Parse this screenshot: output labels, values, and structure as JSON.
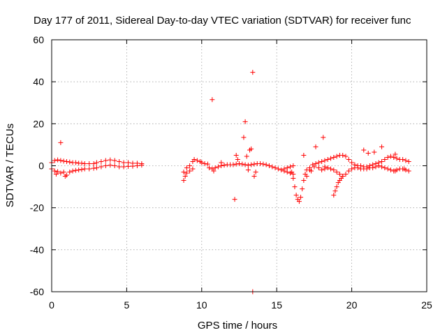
{
  "chart_data": {
    "type": "scatter",
    "title": "Day 177 of 2011, Sidereal Day-to-day VTEC variation (SDTVAR) for receiver func",
    "xlabel": "GPS time / hours",
    "ylabel": "SDTVAR / TECUs",
    "xlim": [
      0,
      25
    ],
    "ylim": [
      -60,
      60
    ],
    "x_ticks": [
      0,
      5,
      10,
      15,
      20,
      25
    ],
    "y_ticks": [
      -60,
      -40,
      -20,
      0,
      20,
      40,
      60
    ],
    "x_tick_labels": [
      "0",
      "5",
      "10",
      "15",
      "20",
      "25"
    ],
    "y_tick_labels": [
      "-60",
      "-40",
      "-20",
      "0",
      "20",
      "40",
      "60"
    ],
    "grid": true,
    "marker": "+",
    "series": [
      {
        "name": "SDTVAR",
        "color": "#ff0000",
        "points": [
          [
            0.0,
            1.5
          ],
          [
            0.0,
            -1.5
          ],
          [
            0.2,
            2.5
          ],
          [
            0.2,
            -2.5
          ],
          [
            0.4,
            2.8
          ],
          [
            0.4,
            -2.8
          ],
          [
            0.6,
            2.5
          ],
          [
            0.6,
            -3.5
          ],
          [
            0.8,
            2.2
          ],
          [
            0.8,
            -3.0
          ],
          [
            1.0,
            2.0
          ],
          [
            1.0,
            -4.5
          ],
          [
            1.2,
            1.8
          ],
          [
            1.2,
            -3.0
          ],
          [
            1.4,
            1.5
          ],
          [
            1.4,
            -2.5
          ],
          [
            1.6,
            1.5
          ],
          [
            1.6,
            -2.2
          ],
          [
            1.8,
            1.2
          ],
          [
            1.8,
            -2.0
          ],
          [
            2.0,
            1.2
          ],
          [
            2.0,
            -1.8
          ],
          [
            2.2,
            1.0
          ],
          [
            2.2,
            -1.5
          ],
          [
            2.5,
            1.0
          ],
          [
            2.5,
            -1.5
          ],
          [
            2.8,
            1.0
          ],
          [
            2.8,
            -1.2
          ],
          [
            3.0,
            1.5
          ],
          [
            3.0,
            -1.0
          ],
          [
            3.3,
            2.0
          ],
          [
            3.3,
            -0.5
          ],
          [
            3.6,
            2.5
          ],
          [
            3.6,
            0.0
          ],
          [
            3.9,
            2.8
          ],
          [
            3.9,
            0.3
          ],
          [
            4.2,
            2.5
          ],
          [
            4.2,
            0.0
          ],
          [
            4.5,
            2.0
          ],
          [
            4.5,
            -0.5
          ],
          [
            4.8,
            1.5
          ],
          [
            4.8,
            -0.5
          ],
          [
            5.1,
            1.5
          ],
          [
            5.1,
            -0.3
          ],
          [
            5.4,
            1.2
          ],
          [
            5.4,
            -0.2
          ],
          [
            5.7,
            1.2
          ],
          [
            5.7,
            0.0
          ],
          [
            6.0,
            1.0
          ],
          [
            6.0,
            0.3
          ],
          [
            0.6,
            11.0
          ],
          [
            0.9,
            -5.0
          ],
          [
            0.3,
            -4.0
          ],
          [
            8.8,
            -7.0
          ],
          [
            8.8,
            -3.0
          ],
          [
            8.9,
            -5.0
          ],
          [
            9.0,
            -3.5
          ],
          [
            9.0,
            -1.0
          ],
          [
            9.2,
            -2.5
          ],
          [
            9.2,
            0.0
          ],
          [
            9.4,
            -1.5
          ],
          [
            9.4,
            2.0
          ],
          [
            9.5,
            3.0
          ],
          [
            9.7,
            2.5
          ],
          [
            9.9,
            2.0
          ],
          [
            10.0,
            1.5
          ],
          [
            10.2,
            1.0
          ],
          [
            10.4,
            0.8
          ],
          [
            10.5,
            -1.0
          ],
          [
            10.7,
            -1.5
          ],
          [
            10.9,
            -1.0
          ],
          [
            11.1,
            -0.5
          ],
          [
            11.3,
            0.0
          ],
          [
            11.5,
            0.3
          ],
          [
            11.7,
            0.5
          ],
          [
            11.9,
            0.5
          ],
          [
            12.1,
            0.5
          ],
          [
            12.3,
            0.8
          ],
          [
            12.5,
            1.0
          ],
          [
            12.7,
            0.8
          ],
          [
            12.9,
            0.5
          ],
          [
            13.1,
            0.3
          ],
          [
            13.3,
            0.5
          ],
          [
            13.5,
            0.8
          ],
          [
            13.7,
            1.0
          ],
          [
            13.9,
            1.0
          ],
          [
            14.1,
            0.8
          ],
          [
            14.3,
            0.5
          ],
          [
            14.5,
            0.0
          ],
          [
            14.7,
            -0.5
          ],
          [
            14.9,
            -1.0
          ],
          [
            15.1,
            -1.5
          ],
          [
            15.3,
            -2.0
          ],
          [
            15.5,
            -2.5
          ],
          [
            15.7,
            -3.0
          ],
          [
            15.9,
            -3.5
          ],
          [
            16.1,
            -4.0
          ],
          [
            10.7,
            31.5
          ],
          [
            13.4,
            44.5
          ],
          [
            12.9,
            21.0
          ],
          [
            12.8,
            13.5
          ],
          [
            13.2,
            7.5
          ],
          [
            13.3,
            8.0
          ],
          [
            12.3,
            5.0
          ],
          [
            12.4,
            3.0
          ],
          [
            13.0,
            4.5
          ],
          [
            12.2,
            -16.0
          ],
          [
            13.4,
            -60.0
          ],
          [
            13.5,
            -5.0
          ],
          [
            13.6,
            -3.0
          ],
          [
            13.1,
            -2.0
          ],
          [
            10.8,
            -2.5
          ],
          [
            11.3,
            1.5
          ],
          [
            15.5,
            -1.5
          ],
          [
            15.7,
            -1.0
          ],
          [
            15.9,
            -0.5
          ],
          [
            16.0,
            -3.0
          ],
          [
            16.1,
            -6.0
          ],
          [
            16.2,
            -10.0
          ],
          [
            16.3,
            -14.0
          ],
          [
            16.4,
            -16.0
          ],
          [
            16.5,
            -17.0
          ],
          [
            16.6,
            -15.0
          ],
          [
            16.7,
            -11.0
          ],
          [
            16.8,
            -7.0
          ],
          [
            16.9,
            -4.0
          ],
          [
            17.0,
            -2.0
          ],
          [
            17.2,
            -1.0
          ],
          [
            17.4,
            0.5
          ],
          [
            17.6,
            1.0
          ],
          [
            17.8,
            1.5
          ],
          [
            18.0,
            2.0
          ],
          [
            18.2,
            2.5
          ],
          [
            18.4,
            3.0
          ],
          [
            18.6,
            3.5
          ],
          [
            18.8,
            4.0
          ],
          [
            19.0,
            4.5
          ],
          [
            19.2,
            5.0
          ],
          [
            19.4,
            5.0
          ],
          [
            19.6,
            4.5
          ],
          [
            19.8,
            3.0
          ],
          [
            20.0,
            1.5
          ],
          [
            20.2,
            0.5
          ],
          [
            20.4,
            0.0
          ],
          [
            20.6,
            0.0
          ],
          [
            20.8,
            -0.5
          ],
          [
            21.0,
            -0.5
          ],
          [
            21.2,
            0.0
          ],
          [
            21.4,
            0.5
          ],
          [
            21.6,
            1.0
          ],
          [
            21.8,
            1.5
          ],
          [
            22.0,
            2.0
          ],
          [
            22.2,
            3.0
          ],
          [
            22.4,
            4.0
          ],
          [
            22.6,
            4.5
          ],
          [
            22.8,
            4.0
          ],
          [
            23.0,
            3.5
          ],
          [
            23.2,
            3.0
          ],
          [
            23.4,
            3.0
          ],
          [
            23.6,
            2.5
          ],
          [
            23.8,
            2.0
          ],
          [
            17.0,
            -5.0
          ],
          [
            17.2,
            -2.0
          ],
          [
            17.5,
            -0.5
          ],
          [
            17.8,
            -1.0
          ],
          [
            18.0,
            -2.0
          ],
          [
            18.2,
            -1.5
          ],
          [
            18.4,
            -1.0
          ],
          [
            18.6,
            -1.5
          ],
          [
            18.8,
            -2.0
          ],
          [
            19.0,
            -3.0
          ],
          [
            19.2,
            -4.0
          ],
          [
            19.4,
            -5.0
          ],
          [
            19.6,
            -4.0
          ],
          [
            19.8,
            -2.5
          ],
          [
            20.0,
            -1.5
          ],
          [
            20.2,
            -1.0
          ],
          [
            20.4,
            -1.0
          ],
          [
            20.6,
            -1.5
          ],
          [
            20.8,
            -1.5
          ],
          [
            21.0,
            -1.5
          ],
          [
            21.2,
            -1.0
          ],
          [
            21.4,
            -1.0
          ],
          [
            21.6,
            -0.5
          ],
          [
            21.8,
            0.0
          ],
          [
            22.0,
            -0.5
          ],
          [
            22.2,
            -1.0
          ],
          [
            22.4,
            -1.5
          ],
          [
            22.6,
            -2.0
          ],
          [
            22.8,
            -2.5
          ],
          [
            23.0,
            -2.0
          ],
          [
            23.2,
            -1.5
          ],
          [
            23.4,
            -1.5
          ],
          [
            23.6,
            -2.0
          ],
          [
            23.8,
            -2.5
          ],
          [
            18.8,
            -14.0
          ],
          [
            18.9,
            -12.0
          ],
          [
            19.0,
            -10.0
          ],
          [
            19.1,
            -8.0
          ],
          [
            19.2,
            -7.0
          ],
          [
            19.3,
            -6.0
          ],
          [
            19.4,
            -5.0
          ],
          [
            18.1,
            13.5
          ],
          [
            17.6,
            9.0
          ],
          [
            16.8,
            5.0
          ],
          [
            21.1,
            6.0
          ],
          [
            22.0,
            9.0
          ],
          [
            22.9,
            5.5
          ],
          [
            22.9,
            -2.5
          ],
          [
            21.5,
            6.5
          ],
          [
            18.2,
            -0.5
          ],
          [
            17.3,
            -2.5
          ],
          [
            23.5,
            -1.5
          ],
          [
            20.8,
            7.5
          ],
          [
            16.1,
            0.0
          ]
        ]
      }
    ]
  }
}
